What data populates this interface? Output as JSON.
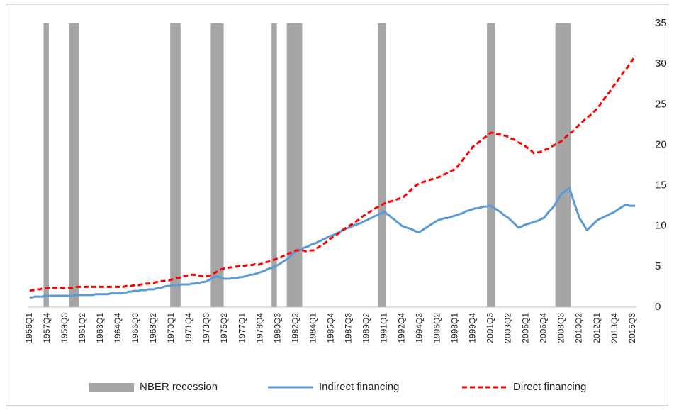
{
  "chart_data": {
    "type": "combo",
    "categories": [
      "1956Q1",
      null,
      null,
      null,
      null,
      null,
      null,
      "1957Q4",
      null,
      null,
      null,
      null,
      null,
      null,
      "1959Q3",
      null,
      null,
      null,
      null,
      null,
      null,
      "1961Q2",
      null,
      null,
      null,
      null,
      null,
      null,
      "1963Q1",
      null,
      null,
      null,
      null,
      null,
      null,
      "1964Q4",
      null,
      null,
      null,
      null,
      null,
      null,
      "1966Q3",
      null,
      null,
      null,
      null,
      null,
      null,
      "1968Q2",
      null,
      null,
      null,
      null,
      null,
      null,
      "1970Q1",
      null,
      null,
      null,
      null,
      null,
      null,
      "1971Q4",
      null,
      null,
      null,
      null,
      null,
      null,
      "1973Q3",
      null,
      null,
      null,
      null,
      null,
      null,
      "1975Q2",
      null,
      null,
      null,
      null,
      null,
      null,
      "1977Q1",
      null,
      null,
      null,
      null,
      null,
      null,
      "1978Q4",
      null,
      null,
      null,
      null,
      null,
      null,
      "1980Q3",
      null,
      null,
      null,
      null,
      null,
      null,
      "1982Q2",
      null,
      null,
      null,
      null,
      null,
      null,
      "1984Q1",
      null,
      null,
      null,
      null,
      null,
      null,
      "1985Q4",
      null,
      null,
      null,
      null,
      null,
      null,
      "1987Q3",
      null,
      null,
      null,
      null,
      null,
      null,
      "1989Q2",
      null,
      null,
      null,
      null,
      null,
      null,
      "1991Q1",
      null,
      null,
      null,
      null,
      null,
      null,
      "1992Q4",
      null,
      null,
      null,
      null,
      null,
      null,
      "1994Q3",
      null,
      null,
      null,
      null,
      null,
      null,
      "1996Q2",
      null,
      null,
      null,
      null,
      null,
      null,
      "1998Q1",
      null,
      null,
      null,
      null,
      null,
      null,
      "1999Q4",
      null,
      null,
      null,
      null,
      null,
      null,
      "2001Q3",
      null,
      null,
      null,
      null,
      null,
      null,
      "2003Q2",
      null,
      null,
      null,
      null,
      null,
      null,
      "2005Q1",
      null,
      null,
      null,
      null,
      null,
      null,
      "2006Q4",
      null,
      null,
      null,
      null,
      null,
      null,
      "2008Q3",
      null,
      null,
      null,
      null,
      null,
      null,
      "2010Q2",
      null,
      null,
      null,
      null,
      null,
      null,
      "2012Q1",
      null,
      null,
      null,
      null,
      null,
      null,
      "2013Q4",
      null,
      null,
      null,
      null,
      null,
      null,
      "2015Q3",
      null
    ],
    "series": [
      {
        "name": "NBER recession",
        "kind": "bar",
        "color": "#a5a5a5",
        "values": [
          0,
          0,
          0,
          0,
          0,
          0,
          35,
          35,
          0,
          0,
          0,
          0,
          0,
          0,
          0,
          0,
          35,
          35,
          35,
          35,
          0,
          0,
          0,
          0,
          0,
          0,
          0,
          0,
          0,
          0,
          0,
          0,
          0,
          0,
          0,
          0,
          0,
          0,
          0,
          0,
          0,
          0,
          0,
          0,
          0,
          0,
          0,
          0,
          0,
          0,
          0,
          0,
          0,
          0,
          0,
          0,
          35,
          35,
          35,
          35,
          0,
          0,
          0,
          0,
          0,
          0,
          0,
          0,
          0,
          0,
          0,
          0,
          35,
          35,
          35,
          35,
          35,
          0,
          0,
          0,
          0,
          0,
          0,
          0,
          0,
          0,
          0,
          0,
          0,
          0,
          0,
          0,
          0,
          0,
          0,
          0,
          35,
          35,
          0,
          0,
          0,
          0,
          35,
          35,
          35,
          35,
          35,
          35,
          0,
          0,
          0,
          0,
          0,
          0,
          0,
          0,
          0,
          0,
          0,
          0,
          0,
          0,
          0,
          0,
          0,
          0,
          0,
          0,
          0,
          0,
          0,
          0,
          0,
          0,
          0,
          0,
          0,
          0,
          35,
          35,
          35,
          0,
          0,
          0,
          0,
          0,
          0,
          0,
          0,
          0,
          0,
          0,
          0,
          0,
          0,
          0,
          0,
          0,
          0,
          0,
          0,
          0,
          0,
          0,
          0,
          0,
          0,
          0,
          0,
          0,
          0,
          0,
          0,
          0,
          0,
          0,
          0,
          0,
          0,
          0,
          0,
          35,
          35,
          35,
          0,
          0,
          0,
          0,
          0,
          0,
          0,
          0,
          0,
          0,
          0,
          0,
          0,
          0,
          0,
          0,
          0,
          0,
          0,
          0,
          0,
          0,
          0,
          0,
          35,
          35,
          35,
          35,
          35,
          35,
          0,
          0,
          0,
          0,
          0,
          0,
          0,
          0,
          0,
          0,
          0,
          0,
          0,
          0,
          0,
          0,
          0,
          0,
          0,
          0,
          0,
          0,
          0,
          0,
          0,
          0
        ]
      },
      {
        "name": "Indirect financing",
        "kind": "line",
        "color": "#5b9bd5",
        "dashed": false,
        "values": [
          1.2,
          1.2,
          1.3,
          1.3,
          1.3,
          1.3,
          1.4,
          1.4,
          1.4,
          1.4,
          1.4,
          1.4,
          1.4,
          1.4,
          1.4,
          1.4,
          1.4,
          1.4,
          1.5,
          1.5,
          1.5,
          1.5,
          1.5,
          1.5,
          1.5,
          1.5,
          1.6,
          1.6,
          1.6,
          1.6,
          1.6,
          1.6,
          1.7,
          1.7,
          1.7,
          1.7,
          1.7,
          1.8,
          1.8,
          1.9,
          1.9,
          2.0,
          2.0,
          2.0,
          2.1,
          2.1,
          2.1,
          2.2,
          2.2,
          2.2,
          2.3,
          2.4,
          2.4,
          2.5,
          2.6,
          2.6,
          2.7,
          2.7,
          2.7,
          2.7,
          2.8,
          2.8,
          2.8,
          2.8,
          2.9,
          2.9,
          3.0,
          3.0,
          3.1,
          3.1,
          3.2,
          3.4,
          3.6,
          3.7,
          3.8,
          3.7,
          3.6,
          3.5,
          3.5,
          3.5,
          3.6,
          3.6,
          3.6,
          3.7,
          3.7,
          3.8,
          3.9,
          4.0,
          4.0,
          4.1,
          4.2,
          4.3,
          4.4,
          4.5,
          4.7,
          4.8,
          4.9,
          5.1,
          5.2,
          5.4,
          5.6,
          5.8,
          6.0,
          6.3,
          6.6,
          6.9,
          7.0,
          7.1,
          7.3,
          7.4,
          7.5,
          7.7,
          7.8,
          7.9,
          8.1,
          8.2,
          8.4,
          8.5,
          8.7,
          8.8,
          8.9,
          9.1,
          9.2,
          9.4,
          9.5,
          9.7,
          9.8,
          9.9,
          10.1,
          10.2,
          10.3,
          10.4,
          10.6,
          10.7,
          10.9,
          11.0,
          11.2,
          11.3,
          11.5,
          11.6,
          11.8,
          11.5,
          11.3,
          11.0,
          10.8,
          10.5,
          10.3,
          10.0,
          9.9,
          9.8,
          9.7,
          9.6,
          9.4,
          9.3,
          9.3,
          9.5,
          9.7,
          9.9,
          10.1,
          10.3,
          10.5,
          10.7,
          10.8,
          10.9,
          11.0,
          11.0,
          11.1,
          11.2,
          11.3,
          11.4,
          11.5,
          11.6,
          11.8,
          11.9,
          12.0,
          12.1,
          12.2,
          12.2,
          12.3,
          12.4,
          12.4,
          12.5,
          12.5,
          12.3,
          12.1,
          11.9,
          11.7,
          11.4,
          11.2,
          11.0,
          10.7,
          10.4,
          10.1,
          9.8,
          9.9,
          10.1,
          10.2,
          10.3,
          10.4,
          10.5,
          10.6,
          10.7,
          10.9,
          11.0,
          11.4,
          11.8,
          12.1,
          12.5,
          13.0,
          13.5,
          14.0,
          14.2,
          14.5,
          14.7,
          13.8,
          12.8,
          11.9,
          11.0,
          10.5,
          10.0,
          9.5,
          9.8,
          10.1,
          10.4,
          10.7,
          10.9,
          11.0,
          11.2,
          11.3,
          11.5,
          11.6,
          11.8,
          12.0,
          12.2,
          12.4,
          12.6,
          12.6,
          12.5,
          12.5,
          12.5
        ]
      },
      {
        "name": "Direct financing",
        "kind": "line",
        "color": "#ff0000",
        "dashed": true,
        "values": [
          2.0,
          2.1,
          2.1,
          2.2,
          2.2,
          2.3,
          2.3,
          2.4,
          2.4,
          2.4,
          2.4,
          2.4,
          2.4,
          2.4,
          2.4,
          2.4,
          2.4,
          2.4,
          2.5,
          2.5,
          2.5,
          2.5,
          2.5,
          2.5,
          2.5,
          2.5,
          2.5,
          2.5,
          2.5,
          2.5,
          2.5,
          2.5,
          2.5,
          2.5,
          2.5,
          2.5,
          2.5,
          2.5,
          2.6,
          2.6,
          2.6,
          2.7,
          2.7,
          2.7,
          2.8,
          2.8,
          2.9,
          2.9,
          3.0,
          3.0,
          3.1,
          3.1,
          3.2,
          3.2,
          3.3,
          3.3,
          3.4,
          3.5,
          3.6,
          3.6,
          3.7,
          3.8,
          3.9,
          3.9,
          4.0,
          4.0,
          3.9,
          3.9,
          3.8,
          3.8,
          3.8,
          3.9,
          4.0,
          4.2,
          4.4,
          4.6,
          4.7,
          4.8,
          4.8,
          4.9,
          4.9,
          5.0,
          5.0,
          5.1,
          5.1,
          5.1,
          5.2,
          5.2,
          5.2,
          5.3,
          5.2,
          5.3,
          5.4,
          5.5,
          5.6,
          5.7,
          5.8,
          5.9,
          6.0,
          6.1,
          6.3,
          6.4,
          6.6,
          6.7,
          6.9,
          7.0,
          7.0,
          7.0,
          7.0,
          6.9,
          6.9,
          7.0,
          7.0,
          7.2,
          7.4,
          7.6,
          7.8,
          8.0,
          8.3,
          8.5,
          8.7,
          8.9,
          9.1,
          9.4,
          9.6,
          9.8,
          10.0,
          10.2,
          10.4,
          10.6,
          10.8,
          11.1,
          11.3,
          11.5,
          11.7,
          11.9,
          12.1,
          12.3,
          12.4,
          12.6,
          12.8,
          12.9,
          13.0,
          13.1,
          13.2,
          13.3,
          13.4,
          13.5,
          13.7,
          14.0,
          14.3,
          14.6,
          14.9,
          15.1,
          15.3,
          15.4,
          15.5,
          15.6,
          15.7,
          15.8,
          15.9,
          16.0,
          16.1,
          16.3,
          16.4,
          16.6,
          16.7,
          16.9,
          17.0,
          17.4,
          17.8,
          18.2,
          18.6,
          19.0,
          19.4,
          19.8,
          20.0,
          20.3,
          20.5,
          20.8,
          21.0,
          21.3,
          21.5,
          21.5,
          21.4,
          21.3,
          21.3,
          21.2,
          21.1,
          21.0,
          20.8,
          20.7,
          20.5,
          20.3,
          20.2,
          20.0,
          19.8,
          19.5,
          19.3,
          19.0,
          19.1,
          19.1,
          19.2,
          19.3,
          19.5,
          19.6,
          19.8,
          20.0,
          20.1,
          20.3,
          20.5,
          20.8,
          21.1,
          21.4,
          21.6,
          21.9,
          22.2,
          22.5,
          22.8,
          23.1,
          23.4,
          23.6,
          23.9,
          24.2,
          24.5,
          24.9,
          25.4,
          25.8,
          26.2,
          26.6,
          27.1,
          27.5,
          27.9,
          28.4,
          28.8,
          29.2,
          29.6,
          30.1,
          30.5,
          31.0
        ]
      }
    ],
    "ylim": [
      0,
      35
    ],
    "yticks": [
      0,
      5,
      10,
      15,
      20,
      25,
      30,
      35
    ],
    "y_axis_side": "right",
    "grid": false,
    "legend": "bottom"
  }
}
